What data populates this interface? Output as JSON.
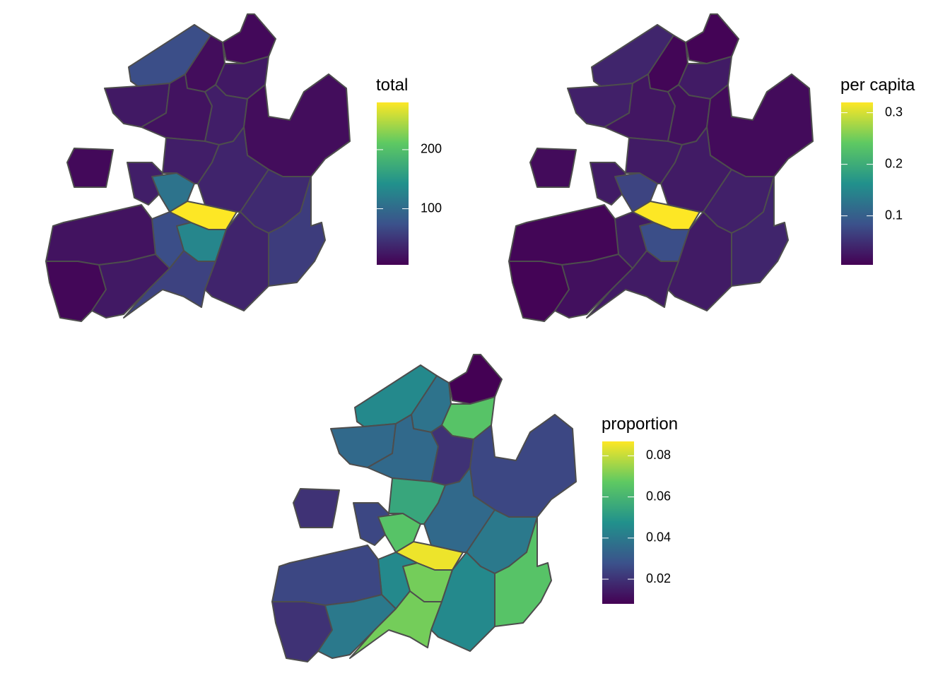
{
  "chart_data": [
    {
      "type": "choropleth",
      "legend_title": "total",
      "values": [
        70,
        15,
        12,
        25,
        25,
        12,
        20,
        30,
        15,
        30,
        110,
        280,
        30,
        35,
        40,
        55,
        130,
        70,
        20,
        10,
        25,
        60,
        35
      ],
      "lim": [
        5,
        280
      ],
      "ticks": [
        100,
        200
      ]
    },
    {
      "type": "choropleth",
      "legend_title": "per capita",
      "values": [
        0.04,
        0.01,
        0.008,
        0.03,
        0.035,
        0.015,
        0.025,
        0.02,
        0.015,
        0.03,
        0.07,
        0.32,
        0.03,
        0.03,
        0.035,
        0.04,
        0.08,
        0.03,
        0.01,
        0.008,
        0.02,
        0.03,
        0.03
      ],
      "lim": [
        0.005,
        0.32
      ],
      "ticks": [
        0.1,
        0.2,
        0.3
      ]
    },
    {
      "type": "choropleth",
      "legend_title": "proportion",
      "values": [
        0.045,
        0.038,
        0.008,
        0.065,
        0.035,
        0.02,
        0.035,
        0.02,
        0.025,
        0.025,
        0.065,
        0.085,
        0.055,
        0.035,
        0.04,
        0.065,
        0.07,
        0.045,
        0.025,
        0.02,
        0.04,
        0.07,
        0.045
      ],
      "lim": [
        0.008,
        0.087
      ],
      "ticks": [
        0.02,
        0.04,
        0.06,
        0.08
      ]
    }
  ]
}
